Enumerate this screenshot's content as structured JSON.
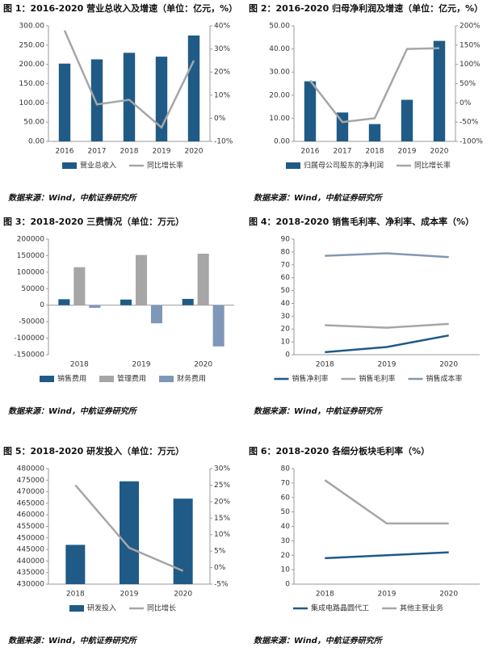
{
  "chart_data": [
    {
      "type": "combo",
      "title": "图 1：2016-2020 营业总收入及增速（单位：亿元，%）",
      "source": "数据来源：Wind，中航证券研究所",
      "categories": [
        "2016",
        "2017",
        "2018",
        "2019",
        "2020"
      ],
      "series": [
        {
          "name": "营业总收入",
          "color": "#1f5b86",
          "values": [
            202,
            213,
            230,
            220,
            275
          ]
        },
        {
          "name": "同比增长率",
          "color": "#a6a6a6",
          "axis": "y2",
          "values": [
            38,
            6,
            8,
            -4,
            25
          ]
        }
      ],
      "ylim": [
        0,
        300
      ],
      "yticks": [
        {
          "value": 0,
          "label": "0.00"
        },
        {
          "value": 50,
          "label": "50.00"
        },
        {
          "value": 100,
          "label": "100.00"
        },
        {
          "value": 150,
          "label": "150.00"
        },
        {
          "value": 200,
          "label": "200.00"
        },
        {
          "value": 250,
          "label": "250.00"
        },
        {
          "value": 300,
          "label": "300.00"
        }
      ],
      "y2lim": [
        -10,
        40
      ],
      "y2ticks": [
        {
          "value": -10,
          "label": "-10%"
        },
        {
          "value": 0,
          "label": "0%"
        },
        {
          "value": 10,
          "label": "10%"
        },
        {
          "value": 20,
          "label": "20%"
        },
        {
          "value": 30,
          "label": "30%"
        },
        {
          "value": 40,
          "label": "40%"
        }
      ]
    },
    {
      "type": "combo",
      "title": "图 2：2016-2020 归母净利润及增速（单位：亿元，%）",
      "source": "数据来源：Wind，中航证券研究所",
      "categories": [
        "2016",
        "2017",
        "2018",
        "2019",
        "2020"
      ],
      "series": [
        {
          "name": "归属母公司股东的净利润",
          "color": "#1f5b86",
          "values": [
            26,
            12.5,
            7.5,
            18,
            43.5
          ]
        },
        {
          "name": "同比增长率",
          "color": "#a6a6a6",
          "axis": "y2",
          "values": [
            58,
            -50,
            -40,
            140,
            142
          ]
        }
      ],
      "ylim": [
        0,
        50
      ],
      "yticks": [
        {
          "value": 0,
          "label": "0.00"
        },
        {
          "value": 10,
          "label": "10.00"
        },
        {
          "value": 20,
          "label": "20.00"
        },
        {
          "value": 30,
          "label": "30.00"
        },
        {
          "value": 40,
          "label": "40.00"
        },
        {
          "value": 50,
          "label": "50.00"
        }
      ],
      "y2lim": [
        -100,
        200
      ],
      "y2ticks": [
        {
          "value": -100,
          "label": "-100%"
        },
        {
          "value": -50,
          "label": "-50%"
        },
        {
          "value": 0,
          "label": "0%"
        },
        {
          "value": 50,
          "label": "50%"
        },
        {
          "value": 100,
          "label": "100%"
        },
        {
          "value": 150,
          "label": "150%"
        },
        {
          "value": 200,
          "label": "200%"
        }
      ]
    },
    {
      "type": "bar",
      "title": "图 3：2018-2020 三费情况（单位：万元）",
      "source": "数据来源：Wind，中航证券研究所",
      "categories": [
        "2018",
        "2019",
        "2020"
      ],
      "series": [
        {
          "name": "销售费用",
          "color": "#1f5b86",
          "values": [
            18000,
            17000,
            19000
          ]
        },
        {
          "name": "管理费用",
          "color": "#a6a6a6",
          "values": [
            115000,
            152000,
            156000
          ]
        },
        {
          "name": "财务费用",
          "color": "#7f97b8",
          "values": [
            -8000,
            -55000,
            -125000
          ]
        }
      ],
      "ylim": [
        -150000,
        200000
      ],
      "yticks": [
        -150000,
        -100000,
        -50000,
        0,
        50000,
        100000,
        150000,
        200000
      ]
    },
    {
      "type": "line",
      "title": "图 4：2018-2020 销售毛利率、净利率、成本率（%）",
      "source": "数据来源：Wind，中航证券研究所",
      "categories": [
        "2018",
        "2019",
        "2020"
      ],
      "series": [
        {
          "name": "销售净利率",
          "color": "#1f5b86",
          "values": [
            2,
            6,
            15
          ]
        },
        {
          "name": "销售毛利率",
          "color": "#a6a6a6",
          "values": [
            23,
            21,
            24
          ]
        },
        {
          "name": "销售成本率",
          "color": "#8497b0",
          "values": [
            77,
            79,
            76
          ]
        }
      ],
      "ylim": [
        0,
        90
      ],
      "yticks": [
        0,
        10,
        20,
        30,
        40,
        50,
        60,
        70,
        80,
        90
      ]
    },
    {
      "type": "combo",
      "title": "图 5：2018-2020 研发投入（单位：万元）",
      "source": "数据来源：Wind，中航证券研究所",
      "categories": [
        "2018",
        "2019",
        "2020"
      ],
      "series": [
        {
          "name": "研发投入",
          "color": "#1f5b86",
          "values": [
            447000,
            474500,
            467000
          ]
        },
        {
          "name": "同比增长",
          "color": "#a6a6a6",
          "axis": "y2",
          "values": [
            25,
            6,
            -1
          ]
        }
      ],
      "ylim": [
        430000,
        480000
      ],
      "yticks": [
        430000,
        435000,
        440000,
        445000,
        450000,
        455000,
        460000,
        465000,
        470000,
        475000,
        480000
      ],
      "y2lim": [
        -5,
        30
      ],
      "y2ticks": [
        {
          "value": -5,
          "label": "-5%"
        },
        {
          "value": 0,
          "label": "0%"
        },
        {
          "value": 5,
          "label": "5%"
        },
        {
          "value": 10,
          "label": "10%"
        },
        {
          "value": 15,
          "label": "15%"
        },
        {
          "value": 20,
          "label": "20%"
        },
        {
          "value": 25,
          "label": "25%"
        },
        {
          "value": 30,
          "label": "30%"
        }
      ]
    },
    {
      "type": "line",
      "title": "图 6：2018-2020 各细分板块毛利率（%）",
      "source": "数据来源：Wind，中航证券研究所",
      "categories": [
        "2018",
        "2019",
        "2020"
      ],
      "series": [
        {
          "name": "集成电路晶圆代工",
          "color": "#1f5b86",
          "values": [
            18,
            20,
            22
          ]
        },
        {
          "name": "其他主营业务",
          "color": "#a6a6a6",
          "values": [
            72,
            42,
            42
          ]
        }
      ],
      "ylim": [
        0,
        80
      ],
      "yticks": [
        0,
        10,
        20,
        30,
        40,
        50,
        60,
        70,
        80
      ]
    }
  ]
}
